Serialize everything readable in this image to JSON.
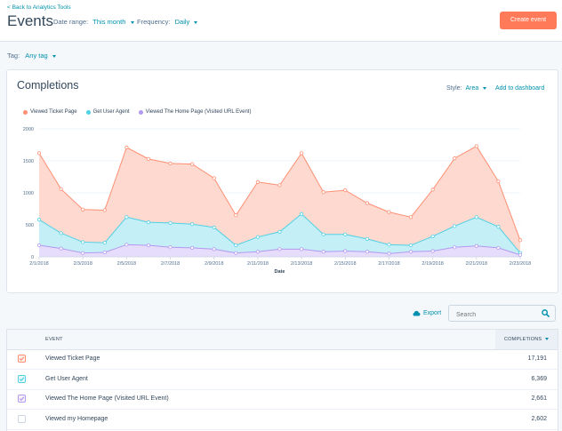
{
  "header": {
    "back_link": "< Back to Analytics Tools",
    "title": "Events",
    "date_range_label": "Date range:",
    "date_range_value": "This month",
    "frequency_label": "Frequency:",
    "frequency_value": "Daily",
    "create_button": "Create event"
  },
  "tag_filter": {
    "label": "Tag:",
    "value": "Any tag"
  },
  "card": {
    "title": "Completions",
    "style_label": "Style:",
    "style_value": "Area",
    "add_to_dashboard": "Add to dashboard"
  },
  "colors": {
    "orange": "#ff8f73",
    "teal": "#4fd1e5",
    "purple": "#b399f0",
    "accent": "#0091ae",
    "brand": "#ff7a59"
  },
  "chart_data": {
    "type": "area",
    "xlabel": "Date",
    "ylim": [
      0,
      2000
    ],
    "yticks": [
      "0",
      "500",
      "1000",
      "1500",
      "2000"
    ],
    "x": [
      "2/1/2018",
      "2/2/2018",
      "2/3/2018",
      "2/4/2018",
      "2/5/2018",
      "2/6/2018",
      "2/7/2018",
      "2/8/2018",
      "2/9/2018",
      "2/10/2018",
      "2/11/2018",
      "2/12/2018",
      "2/13/2018",
      "2/14/2018",
      "2/15/2018",
      "2/16/2018",
      "2/17/2018",
      "2/18/2018",
      "2/19/2018",
      "2/20/2018",
      "2/21/2018",
      "2/22/2018",
      "2/23/2018"
    ],
    "xtick_labels": [
      "2/1/2018",
      "2/3/2018",
      "2/5/2018",
      "2/7/2018",
      "2/9/2018",
      "2/11/2018",
      "2/13/2018",
      "2/15/2018",
      "2/17/2018",
      "2/19/2018",
      "2/21/2018",
      "2/23/2018"
    ],
    "series": [
      {
        "name": "Viewed Ticket Page",
        "color": "#ff8f73",
        "fill": "#fdd9cf",
        "values": [
          1620,
          1060,
          740,
          730,
          1710,
          1530,
          1460,
          1450,
          1230,
          650,
          1170,
          1120,
          1620,
          1010,
          1040,
          840,
          700,
          620,
          1050,
          1540,
          1730,
          1180,
          260
        ]
      },
      {
        "name": "Get User Agent",
        "color": "#4fd1e5",
        "fill": "#c4eff6",
        "values": [
          580,
          370,
          230,
          220,
          620,
          540,
          530,
          510,
          460,
          180,
          310,
          390,
          670,
          350,
          350,
          280,
          190,
          180,
          320,
          480,
          620,
          470,
          60
        ]
      },
      {
        "name": "Viewed The Home Page (Visited URL Event)",
        "color": "#b399f0",
        "fill": "#e6dcfb",
        "values": [
          180,
          130,
          60,
          70,
          190,
          180,
          150,
          140,
          120,
          60,
          80,
          120,
          120,
          80,
          90,
          80,
          50,
          80,
          90,
          150,
          170,
          140,
          30
        ]
      }
    ]
  },
  "table": {
    "export_label": "Export",
    "search_placeholder": "Search",
    "col_event": "EVENT",
    "col_completions": "COMPLETIONS",
    "rows": [
      {
        "name": "Viewed Ticket Page",
        "value": "17,191",
        "checked": true,
        "color": "#ff8f73"
      },
      {
        "name": "Get User Agent",
        "value": "6,369",
        "checked": true,
        "color": "#4fd1e5"
      },
      {
        "name": "Viewed The Home Page (Visited URL Event)",
        "value": "2,661",
        "checked": true,
        "color": "#b399f0"
      },
      {
        "name": "Viewed my Homepage",
        "value": "2,602",
        "checked": false,
        "color": "#cbd6e2"
      }
    ]
  }
}
